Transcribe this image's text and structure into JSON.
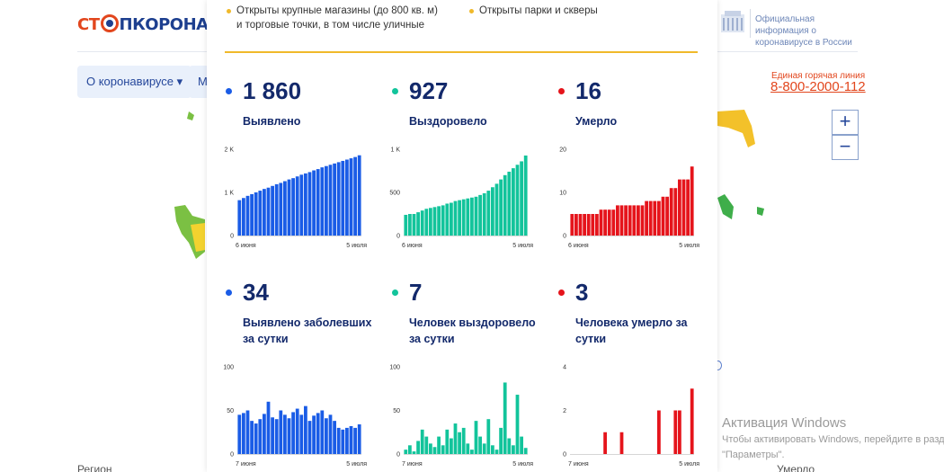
{
  "site": {
    "logo_part1": "СТ",
    "logo_part2": "ПКОРОНАВИ",
    "nav": [
      "О коронавирусе ▾",
      "М"
    ],
    "gov_info": "Официальная информация о коронавирусе в России",
    "hotline_label": "Единая горячая линия",
    "hotline_number": "8-800-2000-112",
    "zoom_in": "+",
    "zoom_out": "−",
    "bottom_left": "Регион",
    "bottom_right": "Умерло"
  },
  "windows_activation": {
    "title": "Активация Windows",
    "line1": "Чтобы активировать Windows, перейдите в разде",
    "line2": "\"Параметры\"."
  },
  "panel": {
    "legend": [
      "Открыты крупные магазины (до 800 кв. м) и торговые точки, в том числе уличные",
      "Открыты парки и скверы"
    ],
    "colors": {
      "blue": "#1a5ce6",
      "teal": "#12c49b",
      "red": "#e5141b",
      "accent": "#f0b92a"
    },
    "stats": [
      {
        "value": "1 860",
        "label": "Выявлено"
      },
      {
        "value": "927",
        "label": "Выздоровело"
      },
      {
        "value": "16",
        "label": "Умерло"
      },
      {
        "value": "34",
        "label": "Выявлено заболевших за сутки"
      },
      {
        "value": "7",
        "label": "Человек выздоровело за сутки"
      },
      {
        "value": "3",
        "label": "Человека умерло за сутки"
      }
    ]
  },
  "chart_data": [
    {
      "type": "bar",
      "title": "Выявлено",
      "color": "#1a5ce6",
      "yticks": [
        "0",
        "1 K",
        "2 K"
      ],
      "ylim": [
        0,
        2000
      ],
      "xticks": [
        "6 июня",
        "5 июля"
      ],
      "values": [
        820,
        870,
        920,
        960,
        1000,
        1040,
        1080,
        1110,
        1150,
        1190,
        1220,
        1260,
        1300,
        1330,
        1370,
        1410,
        1440,
        1470,
        1510,
        1540,
        1580,
        1610,
        1640,
        1670,
        1700,
        1730,
        1760,
        1790,
        1820,
        1860
      ]
    },
    {
      "type": "bar",
      "title": "Выздоровело",
      "color": "#12c49b",
      "yticks": [
        "0",
        "500",
        "1 K"
      ],
      "ylim": [
        0,
        1000
      ],
      "xticks": [
        "6 июня",
        "5 июля"
      ],
      "values": [
        240,
        250,
        250,
        270,
        290,
        310,
        320,
        330,
        340,
        350,
        370,
        380,
        400,
        410,
        420,
        430,
        440,
        450,
        470,
        490,
        520,
        560,
        600,
        650,
        700,
        740,
        780,
        820,
        860,
        927
      ]
    },
    {
      "type": "bar",
      "title": "Умерло",
      "color": "#e5141b",
      "yticks": [
        "0",
        "10",
        "20"
      ],
      "ylim": [
        0,
        20
      ],
      "xticks": [
        "6 июня",
        "5 июля"
      ],
      "values": [
        5,
        5,
        5,
        5,
        5,
        5,
        5,
        6,
        6,
        6,
        6,
        7,
        7,
        7,
        7,
        7,
        7,
        7,
        8,
        8,
        8,
        8,
        9,
        9,
        11,
        11,
        13,
        13,
        13,
        16
      ]
    },
    {
      "type": "bar",
      "title": "Выявлено заболевших за сутки",
      "color": "#1a5ce6",
      "yticks": [
        "0",
        "50",
        "100"
      ],
      "ylim": [
        0,
        100
      ],
      "xticks": [
        "7 июня",
        "5 июля"
      ],
      "values": [
        45,
        47,
        50,
        38,
        35,
        40,
        46,
        60,
        42,
        40,
        50,
        45,
        41,
        48,
        52,
        45,
        55,
        38,
        44,
        47,
        50,
        41,
        45,
        38,
        30,
        28,
        30,
        32,
        30,
        34
      ]
    },
    {
      "type": "bar",
      "title": "Человек выздоровело за сутки",
      "color": "#12c49b",
      "yticks": [
        "0",
        "50",
        "100"
      ],
      "ylim": [
        0,
        100
      ],
      "xticks": [
        "7 июня",
        "5 июля"
      ],
      "values": [
        5,
        10,
        3,
        15,
        28,
        20,
        12,
        8,
        20,
        10,
        28,
        18,
        35,
        25,
        30,
        12,
        5,
        38,
        20,
        12,
        40,
        10,
        5,
        30,
        82,
        18,
        10,
        68,
        20,
        7
      ]
    },
    {
      "type": "bar",
      "title": "Человека умерло за сутки",
      "color": "#e5141b",
      "yticks": [
        "0",
        "2",
        "4"
      ],
      "ylim": [
        0,
        4
      ],
      "xticks": [
        "7 июня",
        "5 июля"
      ],
      "values": [
        0,
        0,
        0,
        0,
        0,
        0,
        0,
        0,
        1,
        0,
        0,
        0,
        1,
        0,
        0,
        0,
        0,
        0,
        0,
        0,
        0,
        2,
        0,
        0,
        0,
        2,
        2,
        0,
        0,
        3
      ]
    }
  ]
}
